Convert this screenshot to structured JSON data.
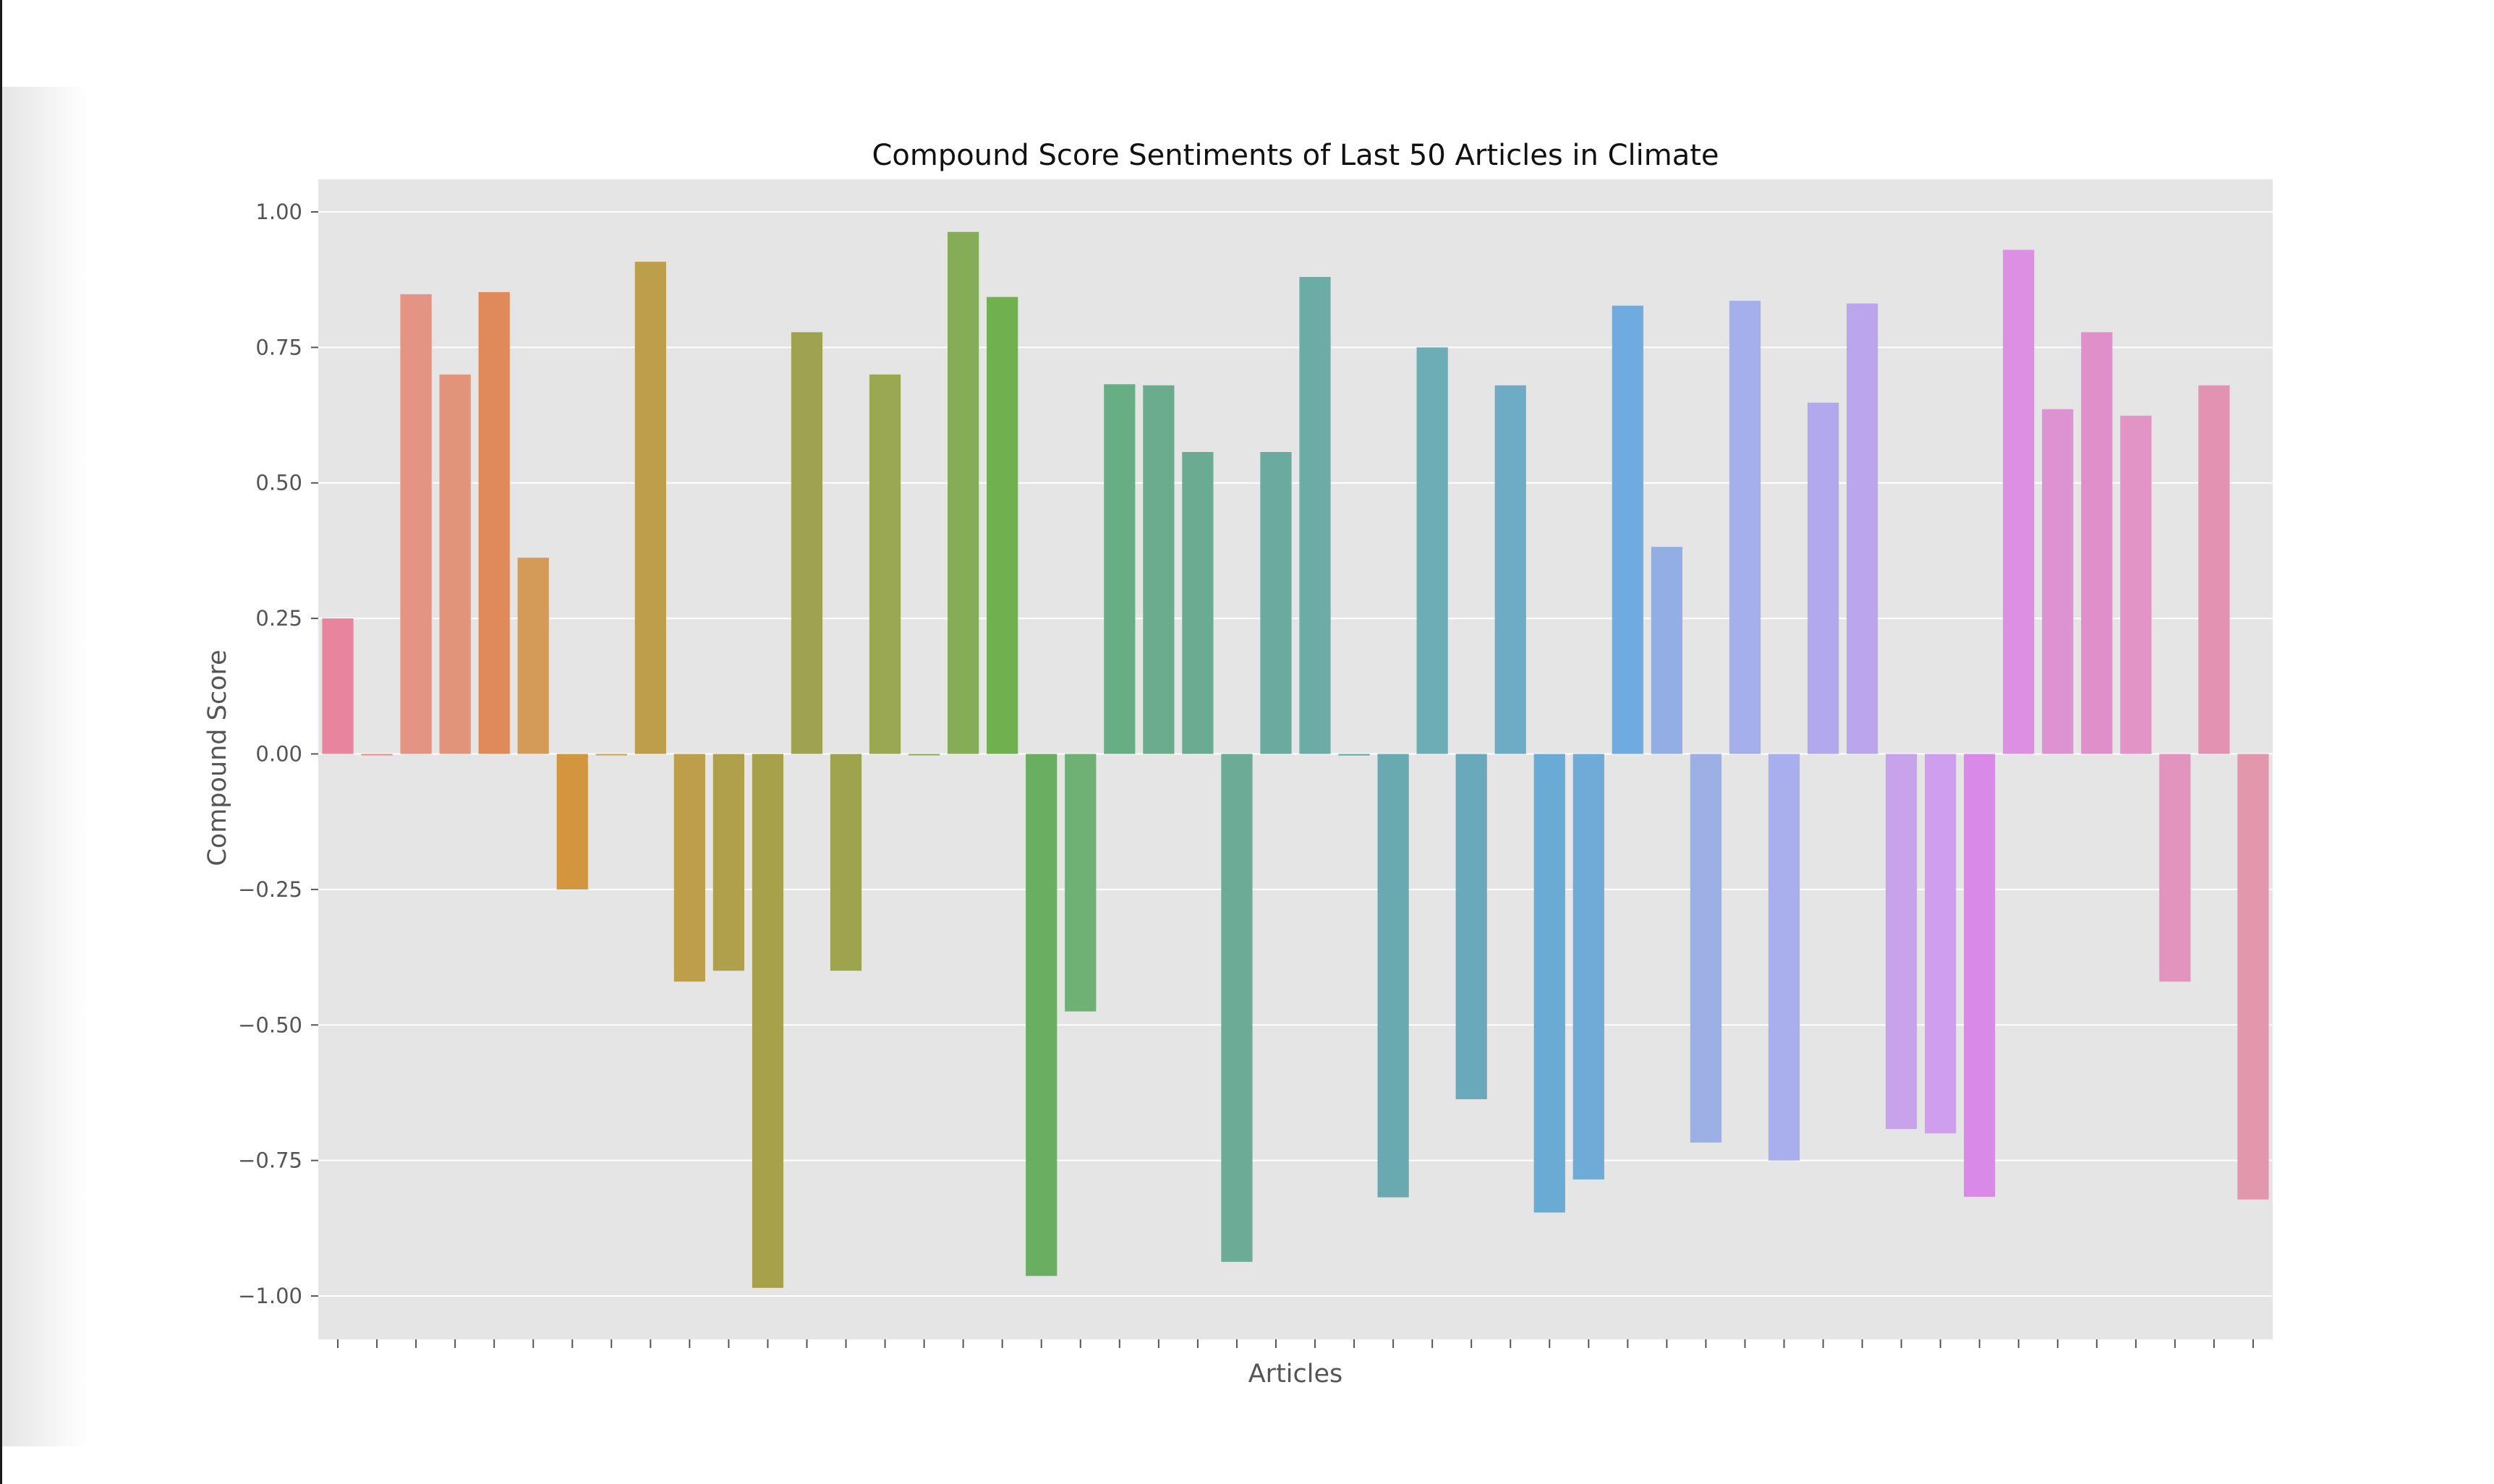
{
  "chart_data": {
    "type": "bar",
    "title": "Compound Score Sentiments of Last 50 Articles in Climate",
    "xlabel": "Articles",
    "ylabel": "Compound Score",
    "ylim": [
      -1.08,
      1.06
    ],
    "yticks": [
      1.0,
      0.75,
      0.5,
      0.25,
      0.0,
      -0.25,
      -0.5,
      -0.75,
      -1.0
    ],
    "ytick_labels": [
      "1.00",
      "0.75",
      "0.50",
      "0.25",
      "0.00",
      "−0.25",
      "−0.50",
      "−0.75",
      "−1.00"
    ],
    "grid": true,
    "background": "#e5e5e5",
    "values": [
      0.25,
      0.0,
      0.848,
      0.7,
      0.852,
      0.362,
      -0.25,
      0.0,
      0.908,
      -0.42,
      -0.4,
      -0.985,
      0.778,
      -0.4,
      0.7,
      0.0,
      0.963,
      0.843,
      -0.963,
      -0.475,
      0.682,
      0.68,
      0.557,
      -0.937,
      0.557,
      0.88,
      -0.003,
      -0.818,
      0.75,
      -0.637,
      0.68,
      -0.846,
      -0.785,
      0.827,
      0.382,
      -0.717,
      0.836,
      -0.75,
      0.648,
      0.831,
      -0.692,
      -0.7,
      -0.817,
      0.93,
      0.636,
      0.778,
      0.624,
      -0.42,
      0.68,
      -0.822
    ],
    "colors": [
      "#e8849b",
      "#e58b83",
      "#e39482",
      "#e2947a",
      "#e08a5c",
      "#d39a58",
      "#d3963e",
      "#c9a24a",
      "#bc9e4b",
      "#bc9e4b",
      "#b09f4b",
      "#a8a14b",
      "#9fa24e",
      "#9ea44e",
      "#9aa951",
      "#8aaa55",
      "#85ac56",
      "#71b04f",
      "#6aae62",
      "#6fb075",
      "#67ae84",
      "#6aac8c",
      "#6aac91",
      "#6cab96",
      "#6aab9f",
      "#6caca6",
      "#6aacac",
      "#68aab0",
      "#6dadb5",
      "#6aa9bb",
      "#6eacc6",
      "#6aabd6",
      "#6fabd6",
      "#6faae0",
      "#92aee3",
      "#9db0e6",
      "#a5b0eb",
      "#a9aeec",
      "#b1a8ed",
      "#b9a6ed",
      "#c8a2eb",
      "#cf9eec",
      "#d98ae9",
      "#dc8fe3",
      "#dd93d1",
      "#e08fcb",
      "#e294c7",
      "#e394be",
      "#e392b2",
      "#e397ad"
    ]
  }
}
